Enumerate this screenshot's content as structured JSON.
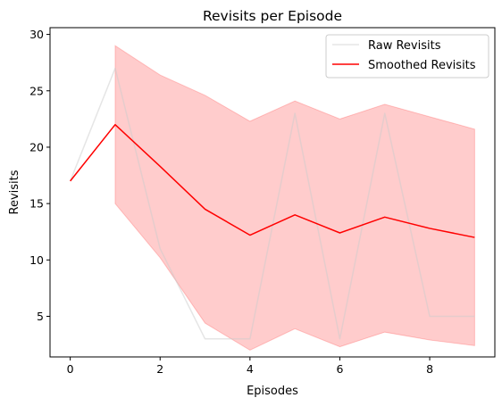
{
  "chart_data": {
    "type": "line",
    "title": "Revisits per Episode",
    "xlabel": "Episodes",
    "ylabel": "Revisits",
    "xlim": [
      -0.45,
      9.45
    ],
    "ylim": [
      1.4,
      30.6
    ],
    "xticks": [
      0,
      2,
      4,
      6,
      8
    ],
    "yticks": [
      5,
      10,
      15,
      20,
      25,
      30
    ],
    "grid": false,
    "legend_position": "top-right",
    "series": [
      {
        "name": "Raw Revisits",
        "color": "#cccccc",
        "x": [
          0,
          1,
          2,
          3,
          4,
          5,
          6,
          7,
          8,
          9
        ],
        "values": [
          17,
          27,
          11,
          3,
          3,
          23,
          3,
          23,
          5,
          5
        ]
      },
      {
        "name": "Smoothed Revisits",
        "color": "#ff0000",
        "x": [
          0,
          1,
          2,
          3,
          4,
          5,
          6,
          7,
          8,
          9
        ],
        "values": [
          17,
          22,
          18.3,
          14.5,
          12.2,
          14.0,
          12.4,
          13.8,
          12.8,
          12.0
        ]
      }
    ],
    "band": {
      "color": "#ff0000",
      "x": [
        1,
        2,
        3,
        4,
        5,
        6,
        7,
        8,
        9
      ],
      "upper": [
        29,
        26.4,
        24.6,
        22.3,
        24.1,
        22.5,
        23.8,
        22.7,
        21.6
      ],
      "lower": [
        15,
        10.2,
        4.4,
        2.0,
        3.9,
        2.3,
        3.6,
        2.9,
        2.4
      ]
    }
  }
}
